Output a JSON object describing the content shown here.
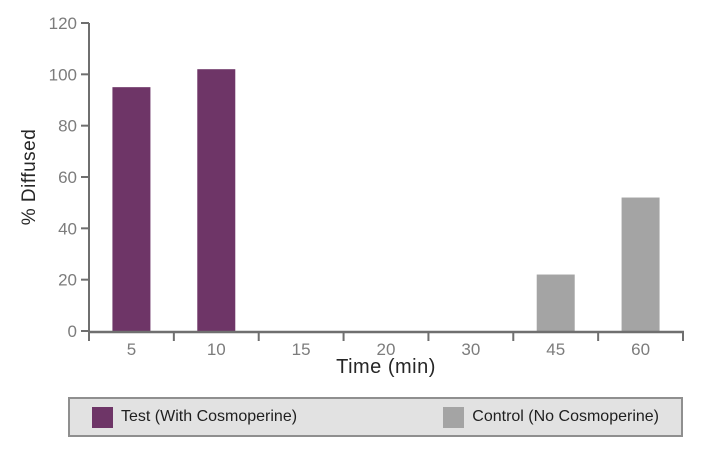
{
  "chart_data": {
    "type": "bar",
    "title": "",
    "xlabel": "Time (min)",
    "ylabel": "% Diffused",
    "categories": [
      "5",
      "10",
      "15",
      "20",
      "30",
      "45",
      "60"
    ],
    "series": [
      {
        "name": "Test (With Cosmoperine)",
        "color": "#6e3567",
        "values": [
          95,
          102,
          0,
          0,
          0,
          0,
          0
        ]
      },
      {
        "name": "Control (No Cosmoperine)",
        "color": "#a4a4a4",
        "values": [
          0,
          0,
          0,
          0,
          0,
          22,
          52
        ]
      }
    ],
    "ylim": [
      0,
      120
    ],
    "yticks": [
      0,
      20,
      40,
      60,
      80,
      100,
      120
    ],
    "grid": false,
    "legend_position": "bottom",
    "legend_background": "#e2e2e2",
    "legend_border_color": "#8f8f8f",
    "axis_color": "#6f6f6f",
    "tick_label_color": "#7c7c7c",
    "text_color": "#262626"
  }
}
